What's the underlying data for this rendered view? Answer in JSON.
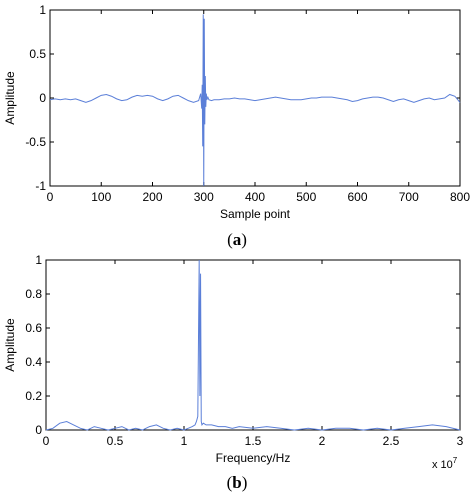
{
  "colors": {
    "series": "#5b7fd8",
    "axis": "#000000",
    "background": "#ffffff"
  },
  "chart_data": [
    {
      "type": "line",
      "caption_prefix": "(",
      "caption_letter": "a",
      "caption_suffix": ")",
      "xlabel": "Sample point",
      "ylabel": "Amplitude",
      "xlim": [
        0,
        800
      ],
      "ylim": [
        -1,
        1
      ],
      "xticks": [
        0,
        100,
        200,
        300,
        400,
        500,
        600,
        700,
        800
      ],
      "xtick_labels": [
        "0",
        "100",
        "200",
        "300",
        "400",
        "500",
        "600",
        "700",
        "800"
      ],
      "yticks": [
        -1,
        -0.5,
        0,
        0.5,
        1
      ],
      "ytick_labels": [
        "-1",
        "-0.5",
        "0",
        "0.5",
        "1"
      ],
      "grid": false,
      "series": [
        {
          "x": [
            0,
            10,
            20,
            30,
            40,
            50,
            60,
            70,
            80,
            90,
            100,
            110,
            120,
            130,
            140,
            150,
            160,
            170,
            180,
            190,
            200,
            210,
            220,
            230,
            240,
            250,
            260,
            270,
            280,
            290,
            292,
            294,
            296,
            297,
            298,
            299,
            300,
            301,
            302,
            303,
            304,
            305,
            306,
            308,
            310,
            315,
            320,
            330,
            340,
            350,
            360,
            370,
            380,
            390,
            400,
            410,
            420,
            430,
            440,
            450,
            460,
            470,
            480,
            490,
            500,
            510,
            520,
            530,
            540,
            550,
            560,
            570,
            580,
            590,
            600,
            610,
            620,
            630,
            640,
            650,
            660,
            670,
            680,
            690,
            700,
            710,
            720,
            730,
            740,
            750,
            760,
            770,
            780,
            790,
            800
          ],
          "y": [
            -0.02,
            -0.01,
            -0.02,
            -0.01,
            -0.02,
            -0.01,
            -0.03,
            -0.05,
            -0.03,
            0.0,
            0.03,
            0.04,
            0.02,
            -0.01,
            -0.03,
            -0.02,
            0.01,
            0.03,
            0.02,
            0.03,
            0.02,
            -0.01,
            -0.03,
            -0.01,
            0.02,
            0.03,
            0.0,
            -0.03,
            -0.05,
            -0.03,
            0.01,
            0.05,
            -0.12,
            0.15,
            -0.55,
            0.95,
            -1.0,
            0.9,
            -0.3,
            0.25,
            -0.1,
            0.05,
            -0.02,
            0.01,
            -0.02,
            -0.03,
            -0.02,
            -0.02,
            -0.01,
            -0.01,
            0.0,
            -0.01,
            -0.01,
            -0.02,
            -0.03,
            -0.02,
            -0.01,
            0.0,
            0.01,
            0.0,
            -0.01,
            -0.02,
            -0.02,
            -0.02,
            -0.01,
            0.0,
            0.0,
            0.01,
            0.01,
            0.01,
            0.0,
            -0.01,
            -0.02,
            -0.04,
            -0.03,
            -0.01,
            0.0,
            0.01,
            0.01,
            0.0,
            -0.02,
            -0.04,
            -0.02,
            -0.01,
            -0.03,
            -0.05,
            -0.03,
            -0.01,
            0.0,
            -0.02,
            -0.01,
            0.0,
            0.04,
            0.02,
            -0.05
          ]
        }
      ]
    },
    {
      "type": "line",
      "caption_prefix": "(",
      "caption_letter": "b",
      "caption_suffix": ")",
      "xlabel": "Frequency/Hz",
      "ylabel": "Amplitude",
      "x_multiplier_base": "x 10",
      "x_multiplier_exp": "7",
      "xlim": [
        0,
        3
      ],
      "ylim": [
        0,
        1
      ],
      "xticks": [
        0,
        0.5,
        1,
        1.5,
        2,
        2.5,
        3
      ],
      "xtick_labels": [
        "0",
        "0.5",
        "1",
        "1.5",
        "2",
        "2.5",
        "3"
      ],
      "yticks": [
        0,
        0.2,
        0.4,
        0.6,
        0.8,
        1
      ],
      "ytick_labels": [
        "0",
        "0.2",
        "0.4",
        "0.6",
        "0.8",
        "1"
      ],
      "grid": false,
      "series": [
        {
          "x": [
            0,
            0.05,
            0.1,
            0.15,
            0.2,
            0.25,
            0.3,
            0.35,
            0.4,
            0.45,
            0.5,
            0.55,
            0.6,
            0.65,
            0.7,
            0.75,
            0.8,
            0.85,
            0.9,
            0.95,
            1.0,
            1.03,
            1.06,
            1.08,
            1.09,
            1.1,
            1.11,
            1.115,
            1.12,
            1.125,
            1.13,
            1.14,
            1.16,
            1.2,
            1.25,
            1.3,
            1.35,
            1.4,
            1.5,
            1.6,
            1.7,
            1.8,
            1.9,
            2.0,
            2.1,
            2.2,
            2.3,
            2.4,
            2.5,
            2.6,
            2.7,
            2.8,
            2.9,
            3.0
          ],
          "y": [
            0.0,
            0.01,
            0.04,
            0.05,
            0.03,
            0.01,
            0.0,
            0.02,
            0.01,
            0.0,
            0.01,
            0.02,
            0.0,
            0.01,
            0.0,
            0.02,
            0.03,
            0.01,
            0.0,
            0.01,
            0.0,
            0.01,
            0.02,
            0.03,
            0.05,
            0.08,
            1.0,
            0.2,
            0.92,
            0.05,
            0.03,
            0.04,
            0.03,
            0.03,
            0.02,
            0.02,
            0.01,
            0.02,
            0.01,
            0.02,
            0.01,
            0.0,
            0.01,
            0.0,
            0.01,
            0.01,
            0.0,
            0.01,
            0.0,
            0.01,
            0.02,
            0.03,
            0.02,
            0.0
          ]
        }
      ]
    }
  ]
}
